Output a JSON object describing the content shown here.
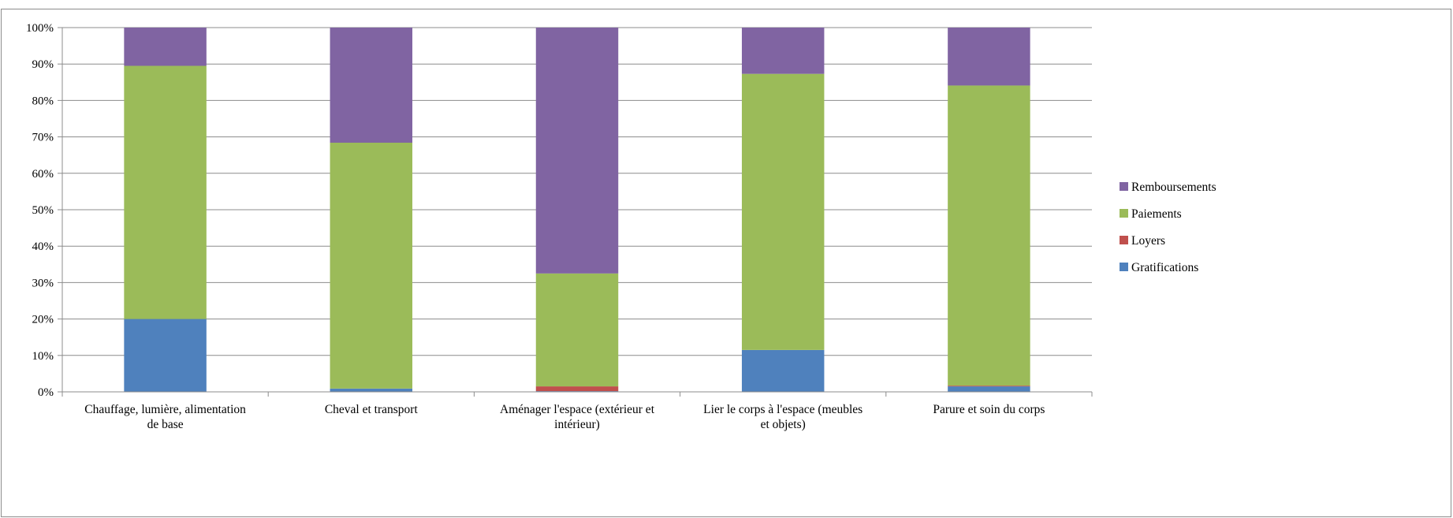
{
  "chart_data": {
    "type": "bar",
    "stacked": "percent",
    "categories": [
      "Chauffage, lumière, alimentation de base",
      "Cheval et transport",
      "Aménager l'espace (extérieur et intérieur)",
      "Lier le corps à l'espace (meubles et objets)",
      "Parure et soin du corps"
    ],
    "series": [
      {
        "name": "Gratifications",
        "color": "#4f81bd",
        "values": [
          20.0,
          0.9,
          0.2,
          11.5,
          1.5
        ]
      },
      {
        "name": "Loyers",
        "color": "#c0504d",
        "values": [
          0.0,
          0.0,
          1.3,
          0.0,
          0.2
        ]
      },
      {
        "name": "Paiements",
        "color": "#9bbb59",
        "values": [
          69.5,
          67.5,
          31.0,
          75.8,
          82.4
        ]
      },
      {
        "name": "Remboursements",
        "color": "#8064a2",
        "values": [
          10.5,
          31.6,
          67.5,
          12.7,
          15.9
        ]
      }
    ],
    "legend_order": [
      "Remboursements",
      "Paiements",
      "Loyers",
      "Gratifications"
    ],
    "yticks": [
      "0%",
      "10%",
      "20%",
      "30%",
      "40%",
      "50%",
      "60%",
      "70%",
      "80%",
      "90%",
      "100%"
    ],
    "ylim": [
      0,
      100
    ],
    "grid": true,
    "legend_position": "right"
  }
}
